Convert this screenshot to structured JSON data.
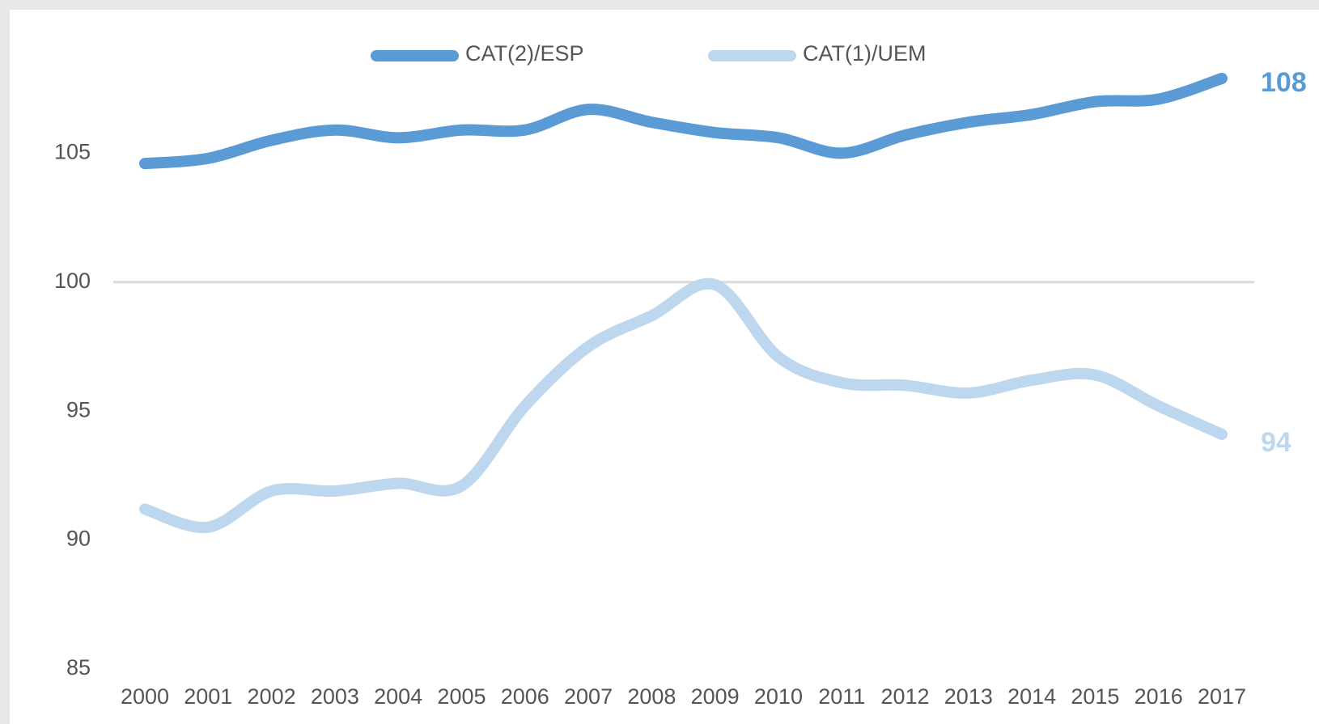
{
  "chart_data": {
    "type": "line",
    "categories": [
      "2000",
      "2001",
      "2002",
      "2003",
      "2004",
      "2005",
      "2006",
      "2007",
      "2008",
      "2009",
      "2010",
      "2011",
      "2012",
      "2013",
      "2014",
      "2015",
      "2016",
      "2017"
    ],
    "series": [
      {
        "name": "CAT(2)/ESP",
        "color": "#5b9bd5",
        "values": [
          104.6,
          104.8,
          105.5,
          105.9,
          105.6,
          105.9,
          105.9,
          106.7,
          106.2,
          105.8,
          105.6,
          105.0,
          105.7,
          106.2,
          106.5,
          107.0,
          107.1,
          107.9
        ],
        "value_labels": [
          null,
          null,
          null,
          null,
          null,
          null,
          null,
          null,
          null,
          null,
          null,
          null,
          null,
          null,
          null,
          null,
          null,
          "108"
        ]
      },
      {
        "name": "CAT(1)/UEM",
        "color": "#bdd7ee",
        "values": [
          91.2,
          90.5,
          91.9,
          91.9,
          92.2,
          92.1,
          95.2,
          97.5,
          98.7,
          99.9,
          97.1,
          96.1,
          96.0,
          95.7,
          96.2,
          96.4,
          95.2,
          94.1
        ],
        "value_labels": [
          null,
          null,
          null,
          null,
          null,
          null,
          null,
          null,
          null,
          null,
          null,
          null,
          null,
          null,
          null,
          null,
          null,
          "94"
        ]
      }
    ],
    "ylim": [
      85,
      110
    ],
    "yticks": [
      85,
      90,
      95,
      100,
      105
    ],
    "grid": false,
    "reference_line": 100,
    "legend": "top"
  }
}
